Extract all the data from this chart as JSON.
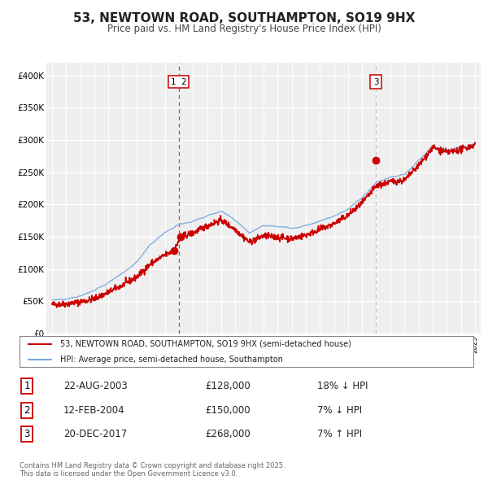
{
  "title": "53, NEWTOWN ROAD, SOUTHAMPTON, SO19 9HX",
  "subtitle": "Price paid vs. HM Land Registry's House Price Index (HPI)",
  "title_fontsize": 11,
  "subtitle_fontsize": 8.5,
  "background_color": "#ffffff",
  "plot_bg_color": "#efefef",
  "grid_color": "#ffffff",
  "ylim": [
    0,
    420000
  ],
  "yticks": [
    0,
    50000,
    100000,
    150000,
    200000,
    250000,
    300000,
    350000,
    400000
  ],
  "ytick_labels": [
    "£0",
    "£50K",
    "£100K",
    "£150K",
    "£200K",
    "£250K",
    "£300K",
    "£350K",
    "£400K"
  ],
  "legend_entries": [
    "53, NEWTOWN ROAD, SOUTHAMPTON, SO19 9HX (semi-detached house)",
    "HPI: Average price, semi-detached house, Southampton"
  ],
  "legend_colors": [
    "#cc0000",
    "#7aaadd"
  ],
  "table_rows": [
    {
      "num": "1",
      "date": "22-AUG-2003",
      "price": "£128,000",
      "hpi": "18% ↓ HPI"
    },
    {
      "num": "2",
      "date": "12-FEB-2004",
      "price": "£150,000",
      "hpi": "7% ↓ HPI"
    },
    {
      "num": "3",
      "date": "20-DEC-2017",
      "price": "£268,000",
      "hpi": "7% ↑ HPI"
    }
  ],
  "footnote": "Contains HM Land Registry data © Crown copyright and database right 2025.\nThis data is licensed under the Open Government Licence v3.0.",
  "red_line_color": "#cc0000",
  "blue_line_color": "#7aaadd",
  "sale_year_1": 2003.645,
  "sale_price_1": 128000,
  "sale_year_2": 2004.12,
  "sale_price_2": 150000,
  "sale_year_3": 2017.97,
  "sale_price_3": 268000,
  "vline1_year": 2004.0,
  "vline2_year": 2017.97
}
